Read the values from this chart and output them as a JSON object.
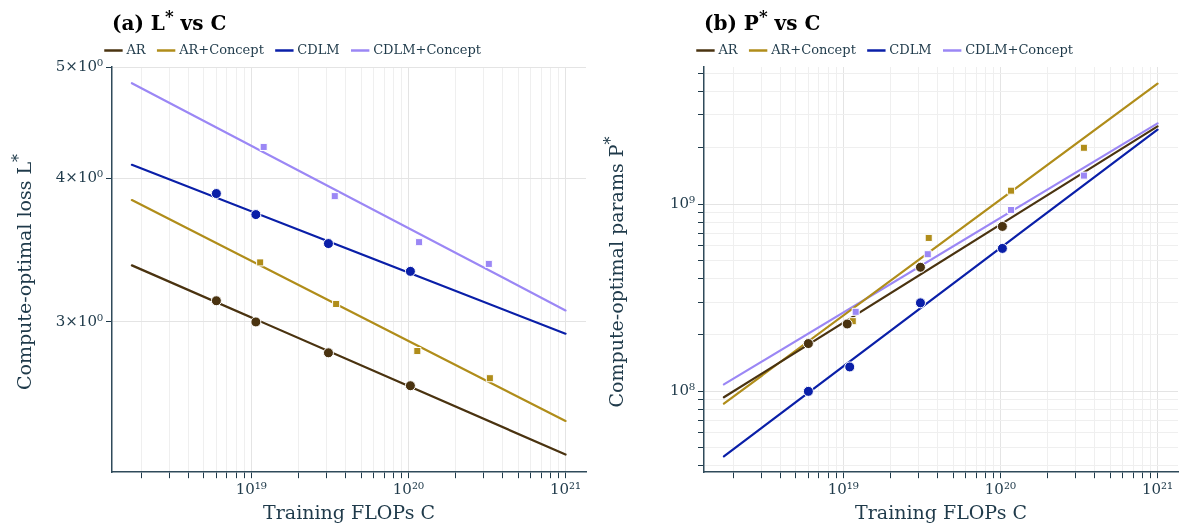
{
  "chart_data": [
    {
      "type": "scatter",
      "title": "(a) L$^{*}$ vs C",
      "xlabel": "Training FLOPs C",
      "ylabel": "Compute-optimal loss L$^{*}$",
      "log": "xy",
      "grid": true,
      "legend": "top",
      "xlim": [
        1.3e+18,
        1.35e+21
      ],
      "ylim": [
        2.22,
        5
      ],
      "xticks": [
        {
          "value": 2e+18,
          "label": null
        },
        {
          "value": 3e+18,
          "label": null
        },
        {
          "value": 4e+18,
          "label": null
        },
        {
          "value": 5e+18,
          "label": null
        },
        {
          "value": 6e+18,
          "label": null
        },
        {
          "value": 7e+18,
          "label": null
        },
        {
          "value": 8e+18,
          "label": null
        },
        {
          "value": 9e+18,
          "label": null
        },
        {
          "value": 1e+19,
          "label": "10¹⁹"
        },
        {
          "value": 2e+19,
          "label": null
        },
        {
          "value": 3e+19,
          "label": null
        },
        {
          "value": 4e+19,
          "label": null
        },
        {
          "value": 5e+19,
          "label": null
        },
        {
          "value": 6e+19,
          "label": null
        },
        {
          "value": 7e+19,
          "label": null
        },
        {
          "value": 8e+19,
          "label": null
        },
        {
          "value": 9e+19,
          "label": null
        },
        {
          "value": 1e+20,
          "label": "10²⁰"
        },
        {
          "value": 2e+20,
          "label": null
        },
        {
          "value": 3e+20,
          "label": null
        },
        {
          "value": 4e+20,
          "label": null
        },
        {
          "value": 5e+20,
          "label": null
        },
        {
          "value": 6e+20,
          "label": null
        },
        {
          "value": 7e+20,
          "label": null
        },
        {
          "value": 8e+20,
          "label": null
        },
        {
          "value": 9e+20,
          "label": null
        },
        {
          "value": 1e+21,
          "label": "10²¹"
        }
      ],
      "yticks": [
        {
          "value": 3,
          "label": "3×10⁰"
        },
        {
          "value": 4,
          "label": "4×10⁰"
        },
        {
          "value": 5,
          "label": "5×10⁰"
        }
      ],
      "series": [
        {
          "name": "AR",
          "type": "line",
          "color": "#4a3310",
          "marker": "none",
          "x": [
            1.74e+18,
            1e+21
          ],
          "values": [
            3.36,
            2.3
          ]
        },
        {
          "name": "AR+Concept",
          "type": "line",
          "color": "#b08d1a",
          "marker": "none",
          "x": [
            1.74e+18,
            1e+21
          ],
          "values": [
            3.83,
            2.46
          ]
        },
        {
          "name": "CDLM",
          "type": "line",
          "color": "#0a1fa8",
          "marker": "none",
          "x": [
            1.74e+18,
            1e+21
          ],
          "values": [
            4.11,
            2.93
          ]
        },
        {
          "name": "CDLM+Concept",
          "type": "line",
          "color": "#9b87f5",
          "marker": "none",
          "x": [
            1.74e+18,
            1e+21
          ],
          "values": [
            4.84,
            3.07
          ]
        },
        {
          "type": "scatter",
          "color": "#4a3310",
          "marker": "circle",
          "x": [
            6e+18,
            1.07e+19,
            3.1e+19,
            1.03e+20
          ],
          "values": [
            3.13,
            3.0,
            2.82,
            2.64
          ]
        },
        {
          "type": "scatter",
          "color": "#b08d1a",
          "marker": "square",
          "x": [
            1.14e+19,
            3.47e+19,
            1.14e+20,
            3.3e+20
          ],
          "values": [
            3.38,
            3.11,
            2.83,
            2.68
          ]
        },
        {
          "type": "scatter",
          "color": "#0a1fa8",
          "marker": "circle",
          "x": [
            6e+18,
            1.07e+19,
            3.1e+19,
            1.03e+20
          ],
          "values": [
            3.88,
            3.72,
            3.51,
            3.32
          ]
        },
        {
          "type": "scatter",
          "color": "#9b87f5",
          "marker": "square",
          "x": [
            1.2e+19,
            3.4e+19,
            1.17e+20,
            3.25e+20
          ],
          "values": [
            4.26,
            3.86,
            3.52,
            3.37
          ]
        }
      ]
    },
    {
      "type": "scatter",
      "title": "(b) P$^{*}$ vs C",
      "xlabel": "Training FLOPs C",
      "ylabel": "Compute-optimal params P$^{*}$",
      "log": "xy",
      "grid": true,
      "legend": "top",
      "xlim": [
        1.3e+18,
        1.35e+21
      ],
      "ylim": [
        37000000.0,
        5400000000.0
      ],
      "xticks": [
        {
          "value": 2e+18,
          "label": null
        },
        {
          "value": 3e+18,
          "label": null
        },
        {
          "value": 4e+18,
          "label": null
        },
        {
          "value": 5e+18,
          "label": null
        },
        {
          "value": 6e+18,
          "label": null
        },
        {
          "value": 7e+18,
          "label": null
        },
        {
          "value": 8e+18,
          "label": null
        },
        {
          "value": 9e+18,
          "label": null
        },
        {
          "value": 1e+19,
          "label": "10¹⁹"
        },
        {
          "value": 2e+19,
          "label": null
        },
        {
          "value": 3e+19,
          "label": null
        },
        {
          "value": 4e+19,
          "label": null
        },
        {
          "value": 5e+19,
          "label": null
        },
        {
          "value": 6e+19,
          "label": null
        },
        {
          "value": 7e+19,
          "label": null
        },
        {
          "value": 8e+19,
          "label": null
        },
        {
          "value": 9e+19,
          "label": null
        },
        {
          "value": 1e+20,
          "label": "10²⁰"
        },
        {
          "value": 2e+20,
          "label": null
        },
        {
          "value": 3e+20,
          "label": null
        },
        {
          "value": 4e+20,
          "label": null
        },
        {
          "value": 5e+20,
          "label": null
        },
        {
          "value": 6e+20,
          "label": null
        },
        {
          "value": 7e+20,
          "label": null
        },
        {
          "value": 8e+20,
          "label": null
        },
        {
          "value": 9e+20,
          "label": null
        },
        {
          "value": 1e+21,
          "label": "10²¹"
        }
      ],
      "yticks": [
        {
          "value": 40000000.0,
          "label": null
        },
        {
          "value": 50000000.0,
          "label": null
        },
        {
          "value": 60000000.0,
          "label": null
        },
        {
          "value": 70000000.0,
          "label": null
        },
        {
          "value": 80000000.0,
          "label": null
        },
        {
          "value": 90000000.0,
          "label": null
        },
        {
          "value": 100000000.0,
          "label": "10⁸"
        },
        {
          "value": 200000000.0,
          "label": null
        },
        {
          "value": 300000000.0,
          "label": null
        },
        {
          "value": 400000000.0,
          "label": null
        },
        {
          "value": 500000000.0,
          "label": null
        },
        {
          "value": 600000000.0,
          "label": null
        },
        {
          "value": 700000000.0,
          "label": null
        },
        {
          "value": 800000000.0,
          "label": null
        },
        {
          "value": 900000000.0,
          "label": null
        },
        {
          "value": 1000000000.0,
          "label": "10⁹"
        },
        {
          "value": 2000000000.0,
          "label": null
        },
        {
          "value": 3000000000.0,
          "label": null
        },
        {
          "value": 4000000000.0,
          "label": null
        },
        {
          "value": 5000000000.0,
          "label": null
        }
      ],
      "series": [
        {
          "name": "AR",
          "type": "line",
          "color": "#4a3310",
          "marker": "none",
          "x": [
            1.74e+18,
            1e+21
          ],
          "values": [
            93000000.0,
            2600000000.0
          ]
        },
        {
          "name": "AR+Concept",
          "type": "line",
          "color": "#b08d1a",
          "marker": "none",
          "x": [
            1.74e+18,
            1e+21
          ],
          "values": [
            86000000.0,
            4400000000.0
          ]
        },
        {
          "name": "CDLM",
          "type": "line",
          "color": "#0a1fa8",
          "marker": "none",
          "x": [
            1.74e+18,
            1e+21
          ],
          "values": [
            45000000.0,
            2500000000.0
          ]
        },
        {
          "name": "CDLM+Concept",
          "type": "line",
          "color": "#9b87f5",
          "marker": "none",
          "x": [
            1.74e+18,
            1e+21
          ],
          "values": [
            109000000.0,
            2700000000.0
          ]
        },
        {
          "type": "scatter",
          "color": "#4a3310",
          "marker": "circle",
          "x": [
            6e+18,
            1.06e+19,
            3.1e+19,
            1.03e+20
          ],
          "values": [
            180000000.0,
            229000000.0,
            460000000.0,
            760000000.0
          ]
        },
        {
          "type": "scatter",
          "color": "#b08d1a",
          "marker": "square",
          "x": [
            1.15e+19,
            3.5e+19,
            1.17e+20,
            3.4e+20
          ],
          "values": [
            237000000.0,
            660000000.0,
            1180000000.0,
            2000000000.0
          ]
        },
        {
          "type": "scatter",
          "color": "#0a1fa8",
          "marker": "circle",
          "x": [
            6e+18,
            1.1e+19,
            3.1e+19,
            1.03e+20
          ],
          "values": [
            100000000.0,
            135000000.0,
            297000000.0,
            580000000.0
          ]
        },
        {
          "type": "scatter",
          "color": "#9b87f5",
          "marker": "square",
          "x": [
            1.2e+19,
            3.45e+19,
            1.17e+20,
            3.4e+20
          ],
          "values": [
            266000000.0,
            540000000.0,
            930000000.0,
            1420000000.0
          ]
        }
      ]
    }
  ]
}
